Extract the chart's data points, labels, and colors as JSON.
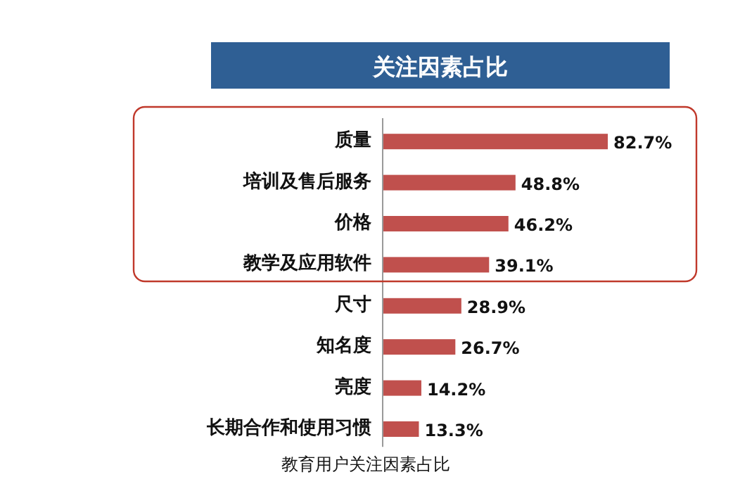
{
  "chart_data": {
    "type": "bar",
    "orientation": "horizontal",
    "title": "关注因素占比",
    "categories": [
      "质量",
      "培训及售后服务",
      "价格",
      "教学及应用软件",
      "尺寸",
      "知名度",
      "亮度",
      "长期合作和使用习惯"
    ],
    "values": [
      82.7,
      48.8,
      46.2,
      39.1,
      28.9,
      26.7,
      14.2,
      13.3
    ],
    "value_labels": [
      "82.7%",
      "48.8%",
      "46.2%",
      "39.1%",
      "28.9%",
      "26.7%",
      "14.2%",
      "13.3%"
    ],
    "color": "#c0504d",
    "annotations": [
      "教育用户关注因素占比"
    ]
  }
}
